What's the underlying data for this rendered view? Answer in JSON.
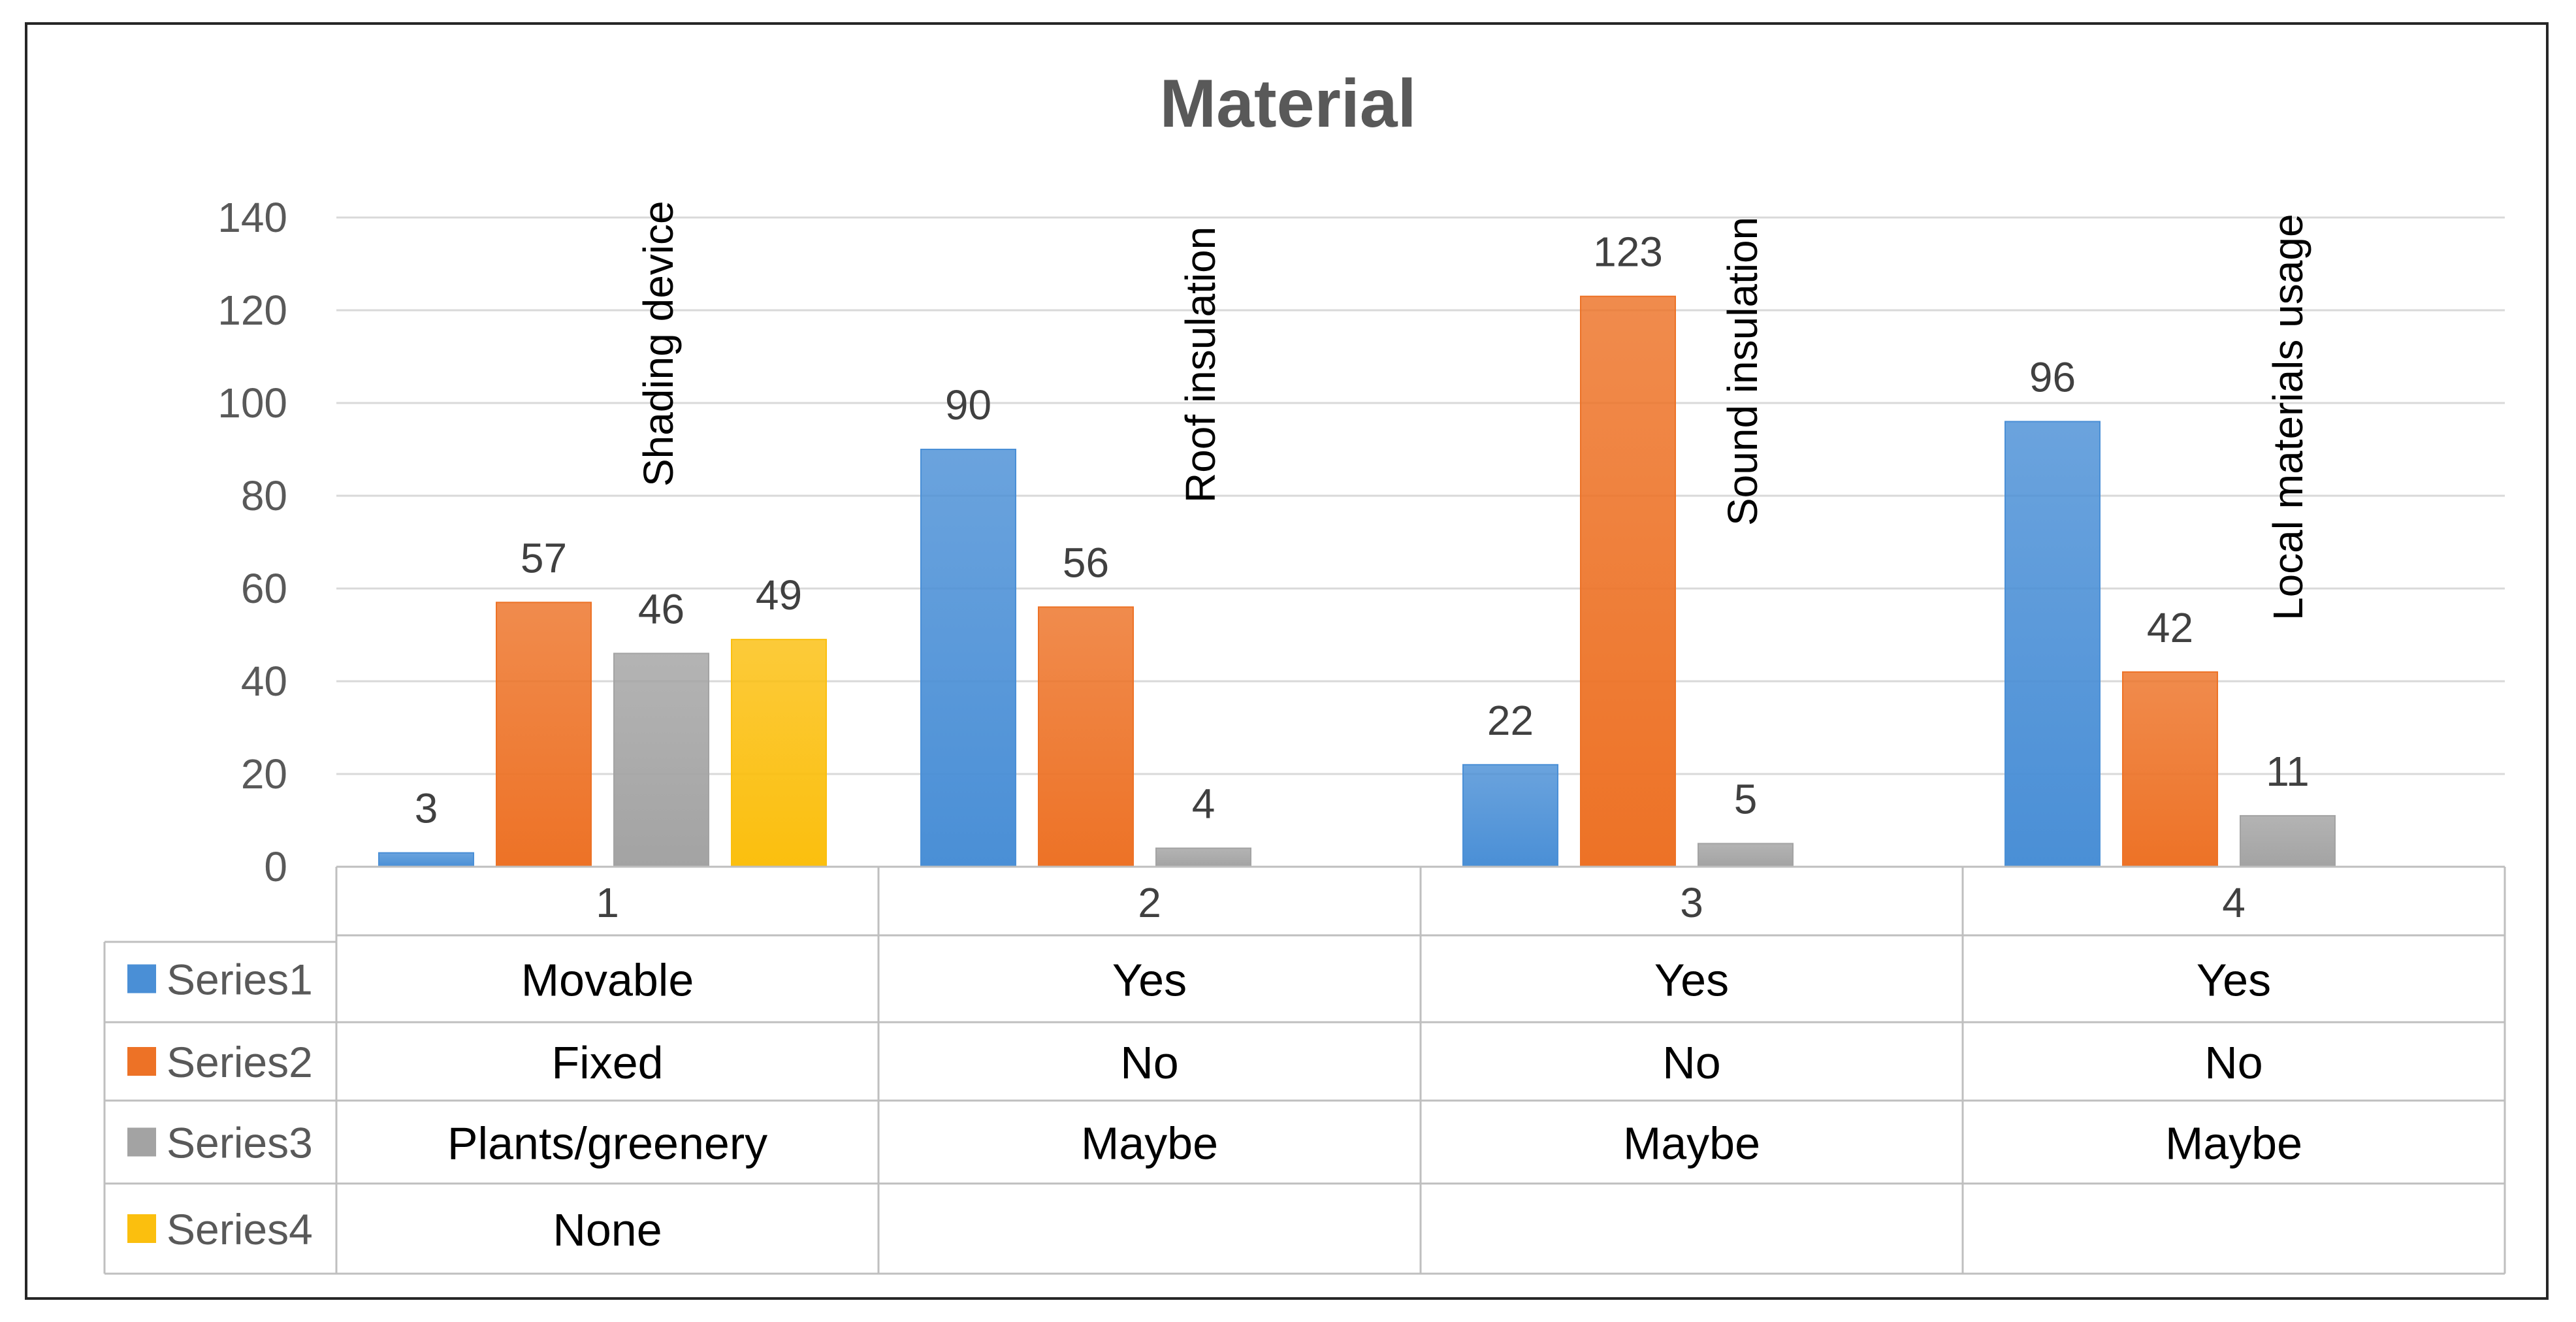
{
  "chart_data": {
    "type": "bar",
    "title": "Material",
    "categories": [
      "1",
      "2",
      "3",
      "4"
    ],
    "category_annotations": [
      "Shading device",
      "Roof insulation",
      "Sound insulation",
      "Local materials usage"
    ],
    "ylim": [
      0,
      140
    ],
    "yticks": [
      0,
      20,
      40,
      60,
      80,
      100,
      120,
      140
    ],
    "grid": true,
    "series": [
      {
        "name": "Series1",
        "color": "#4a8fd6",
        "values": [
          3,
          90,
          22,
          96
        ],
        "table": [
          "Movable",
          "Yes",
          "Yes",
          "Yes"
        ]
      },
      {
        "name": "Series2",
        "color": "#ed7226",
        "values": [
          57,
          56,
          123,
          42
        ],
        "table": [
          "Fixed",
          "No",
          "No",
          "No"
        ]
      },
      {
        "name": "Series3",
        "color": "#a3a3a3",
        "values": [
          46,
          4,
          5,
          11
        ],
        "table": [
          "Plants/greenery",
          "Maybe",
          "Maybe",
          "Maybe"
        ]
      },
      {
        "name": "Series4",
        "color": "#fbbf0e",
        "values": [
          49,
          null,
          null,
          null
        ],
        "table": [
          "None",
          "",
          "",
          ""
        ]
      }
    ]
  }
}
